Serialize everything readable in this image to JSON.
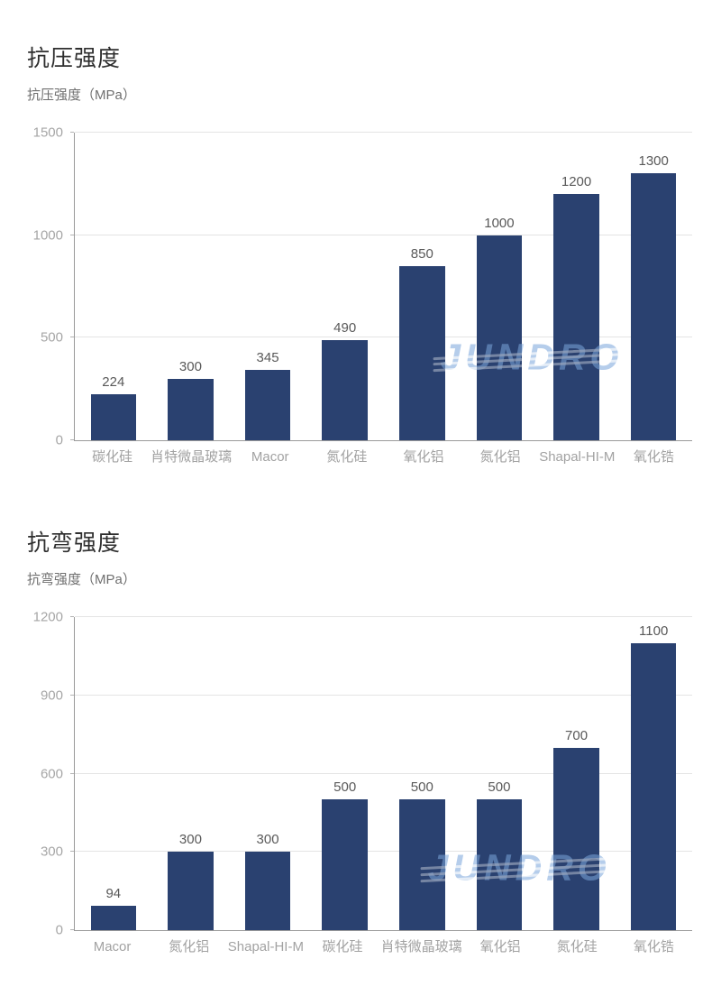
{
  "watermark": {
    "text": "JUNDRO",
    "color": "#7aa6db"
  },
  "colors": {
    "bar": "#2a4170",
    "gridline": "#e4e4e4",
    "axis": "#9a9a9a",
    "tick_label": "#a6a6a6",
    "value_label": "#595959",
    "category_label": "#a2a2a2"
  },
  "chart_data": [
    {
      "type": "bar",
      "title": "抗压强度",
      "subtitle": "抗压强度（MPa）",
      "xlabel": "",
      "ylabel": "抗压强度（MPa）",
      "categories": [
        "碳化硅",
        "肖特微晶玻璃",
        "Macor",
        "氮化硅",
        "氧化铝",
        "氮化铝",
        "Shapal-HI-M",
        "氧化锆"
      ],
      "values": [
        224,
        300,
        345,
        490,
        850,
        1000,
        1200,
        1300
      ],
      "ylim": [
        0,
        1500
      ],
      "yticks": [
        0,
        500,
        1000,
        1500
      ],
      "grid": true,
      "legend": false,
      "bar_color": "#2a4170",
      "data_labels": true,
      "watermark_pos": {
        "left_pct": 74,
        "top_pct": 73
      }
    },
    {
      "type": "bar",
      "title": "抗弯强度",
      "subtitle": "抗弯强度（MPa）",
      "xlabel": "",
      "ylabel": "抗弯强度（MPa）",
      "categories": [
        "Macor",
        "氮化铝",
        "Shapal-HI-M",
        "碳化硅",
        "肖特微晶玻璃",
        "氧化铝",
        "氮化硅",
        "氧化锆"
      ],
      "values": [
        94,
        300,
        300,
        500,
        500,
        500,
        700,
        1100
      ],
      "ylim": [
        0,
        1200
      ],
      "yticks": [
        0,
        300,
        600,
        900,
        1200
      ],
      "grid": true,
      "legend": false,
      "bar_color": "#2a4170",
      "data_labels": true,
      "watermark_pos": {
        "left_pct": 72,
        "top_pct": 80
      }
    }
  ]
}
